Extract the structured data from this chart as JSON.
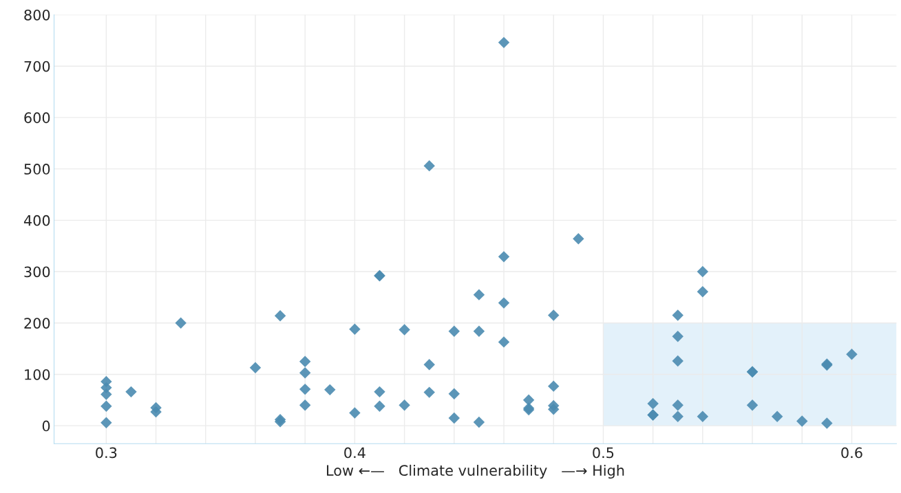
{
  "chart_data": {
    "type": "scatter",
    "xlabel": "Low ←—   Climate vulnerability   —→ High",
    "x": [
      0.3,
      0.3,
      0.3,
      0.3,
      0.3,
      0.31,
      0.32,
      0.32,
      0.33,
      0.36,
      0.37,
      0.37,
      0.37,
      0.38,
      0.38,
      0.38,
      0.38,
      0.39,
      0.4,
      0.4,
      0.41,
      0.41,
      0.41,
      0.41,
      0.42,
      0.42,
      0.43,
      0.43,
      0.43,
      0.44,
      0.44,
      0.44,
      0.45,
      0.45,
      0.45,
      0.46,
      0.46,
      0.46,
      0.46,
      0.47,
      0.47,
      0.47,
      0.48,
      0.48,
      0.48,
      0.48,
      0.49,
      0.52,
      0.52,
      0.52,
      0.53,
      0.53,
      0.53,
      0.53,
      0.53,
      0.54,
      0.54,
      0.54,
      0.56,
      0.56,
      0.56,
      0.57,
      0.58,
      0.59,
      0.59,
      0.59,
      0.6
    ],
    "series": [
      {
        "type": "area",
        "marker": "none",
        "color": "#e3f1fa",
        "x": [
          0.5,
          0.618
        ],
        "values": [
          200,
          200
        ]
      },
      {
        "marker": "diamond",
        "color": "#4a8bb0",
        "values": [
          86,
          74,
          61,
          38,
          6,
          66,
          35,
          27,
          200,
          113,
          214,
          12,
          8,
          125,
          103,
          71,
          40,
          70,
          188,
          25,
          292,
          292,
          66,
          38,
          187,
          40,
          506,
          119,
          65,
          184,
          62,
          15,
          255,
          184,
          7,
          746,
          329,
          239,
          163,
          50,
          34,
          31,
          215,
          77,
          39,
          32,
          364,
          43,
          21,
          21,
          215,
          174,
          126,
          40,
          18,
          300,
          261,
          18,
          105,
          105,
          40,
          18,
          9,
          120,
          118,
          5,
          139
        ]
      }
    ],
    "grid": true,
    "xlim": [
      0.279,
      0.618
    ],
    "ylim": [
      -35,
      800
    ],
    "xticks": [
      0.3,
      {
        "value": 0.32,
        "label": null
      },
      {
        "value": 0.34,
        "label": null
      },
      {
        "value": 0.36,
        "label": null
      },
      {
        "value": 0.38,
        "label": null
      },
      0.4,
      {
        "value": 0.42,
        "label": null
      },
      {
        "value": 0.44,
        "label": null
      },
      {
        "value": 0.46,
        "label": null
      },
      {
        "value": 0.48,
        "label": null
      },
      0.5,
      {
        "value": 0.52,
        "label": null
      },
      {
        "value": 0.54,
        "label": null
      },
      {
        "value": 0.56,
        "label": null
      },
      {
        "value": 0.58,
        "label": null
      },
      0.6
    ],
    "yticks": [
      0,
      100,
      200,
      300,
      400,
      500,
      600,
      700,
      800
    ]
  }
}
